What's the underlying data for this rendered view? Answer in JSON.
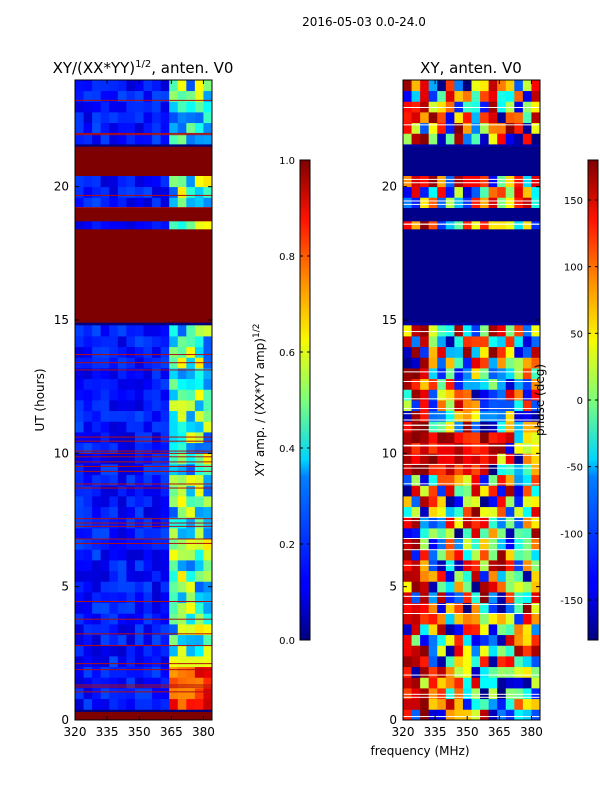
{
  "figure": {
    "suptitle": "2016-05-03 0.0-24.0",
    "xlabel": "frequency (MHz)"
  },
  "chart_data": [
    {
      "type": "heatmap",
      "title_main": "XY/(XX*YY)",
      "title_exp": "1/2",
      "title_tail": ", anten. V0",
      "ylabel": "UT (hours)",
      "xlim": [
        320,
        384
      ],
      "ylim": [
        0,
        24
      ],
      "xticks": [
        "320",
        "335",
        "350",
        "365",
        "380"
      ],
      "xtick_values": [
        320,
        335,
        350,
        365,
        380
      ],
      "yticks": [
        "0",
        "5",
        "10",
        "15",
        "20"
      ],
      "ytick_values": [
        0,
        5,
        10,
        15,
        20
      ],
      "colorbar": {
        "label_main": "XY amp. / (XX*YY amp)",
        "label_exp": "1/2",
        "range": [
          0.0,
          1.0
        ],
        "ticks": [
          "0.0",
          "0.2",
          "0.4",
          "0.6",
          "0.8",
          "1.0"
        ],
        "tick_values": [
          0.0,
          0.2,
          0.4,
          0.6,
          0.8,
          1.0
        ]
      },
      "saturated_bands_hours": [
        [
          0.0,
          0.3
        ],
        [
          14.9,
          18.4
        ],
        [
          18.7,
          19.2
        ],
        [
          20.4,
          21.5
        ]
      ],
      "bright_band_mhz": [
        363,
        383
      ]
    },
    {
      "type": "heatmap",
      "title": "XY, anten. V0",
      "ylabel": "phase (deg)",
      "xlim": [
        320,
        384
      ],
      "ylim": [
        0,
        24
      ],
      "xticks": [
        "320",
        "335",
        "350",
        "365",
        "380"
      ],
      "xtick_values": [
        320,
        335,
        350,
        365,
        380
      ],
      "yticks": [
        "0",
        "5",
        "10",
        "15",
        "20"
      ],
      "ytick_values": [
        0,
        5,
        10,
        15,
        20
      ],
      "colorbar": {
        "range": [
          -180,
          180
        ],
        "ticks": [
          "-150",
          "-100",
          "-50",
          "0",
          "50",
          "100",
          "150"
        ],
        "tick_values": [
          -150,
          -100,
          -50,
          0,
          50,
          100,
          150
        ]
      },
      "dark_bands_hours": [
        [
          14.9,
          18.4
        ],
        [
          18.7,
          19.2
        ],
        [
          20.4,
          21.5
        ]
      ]
    }
  ]
}
